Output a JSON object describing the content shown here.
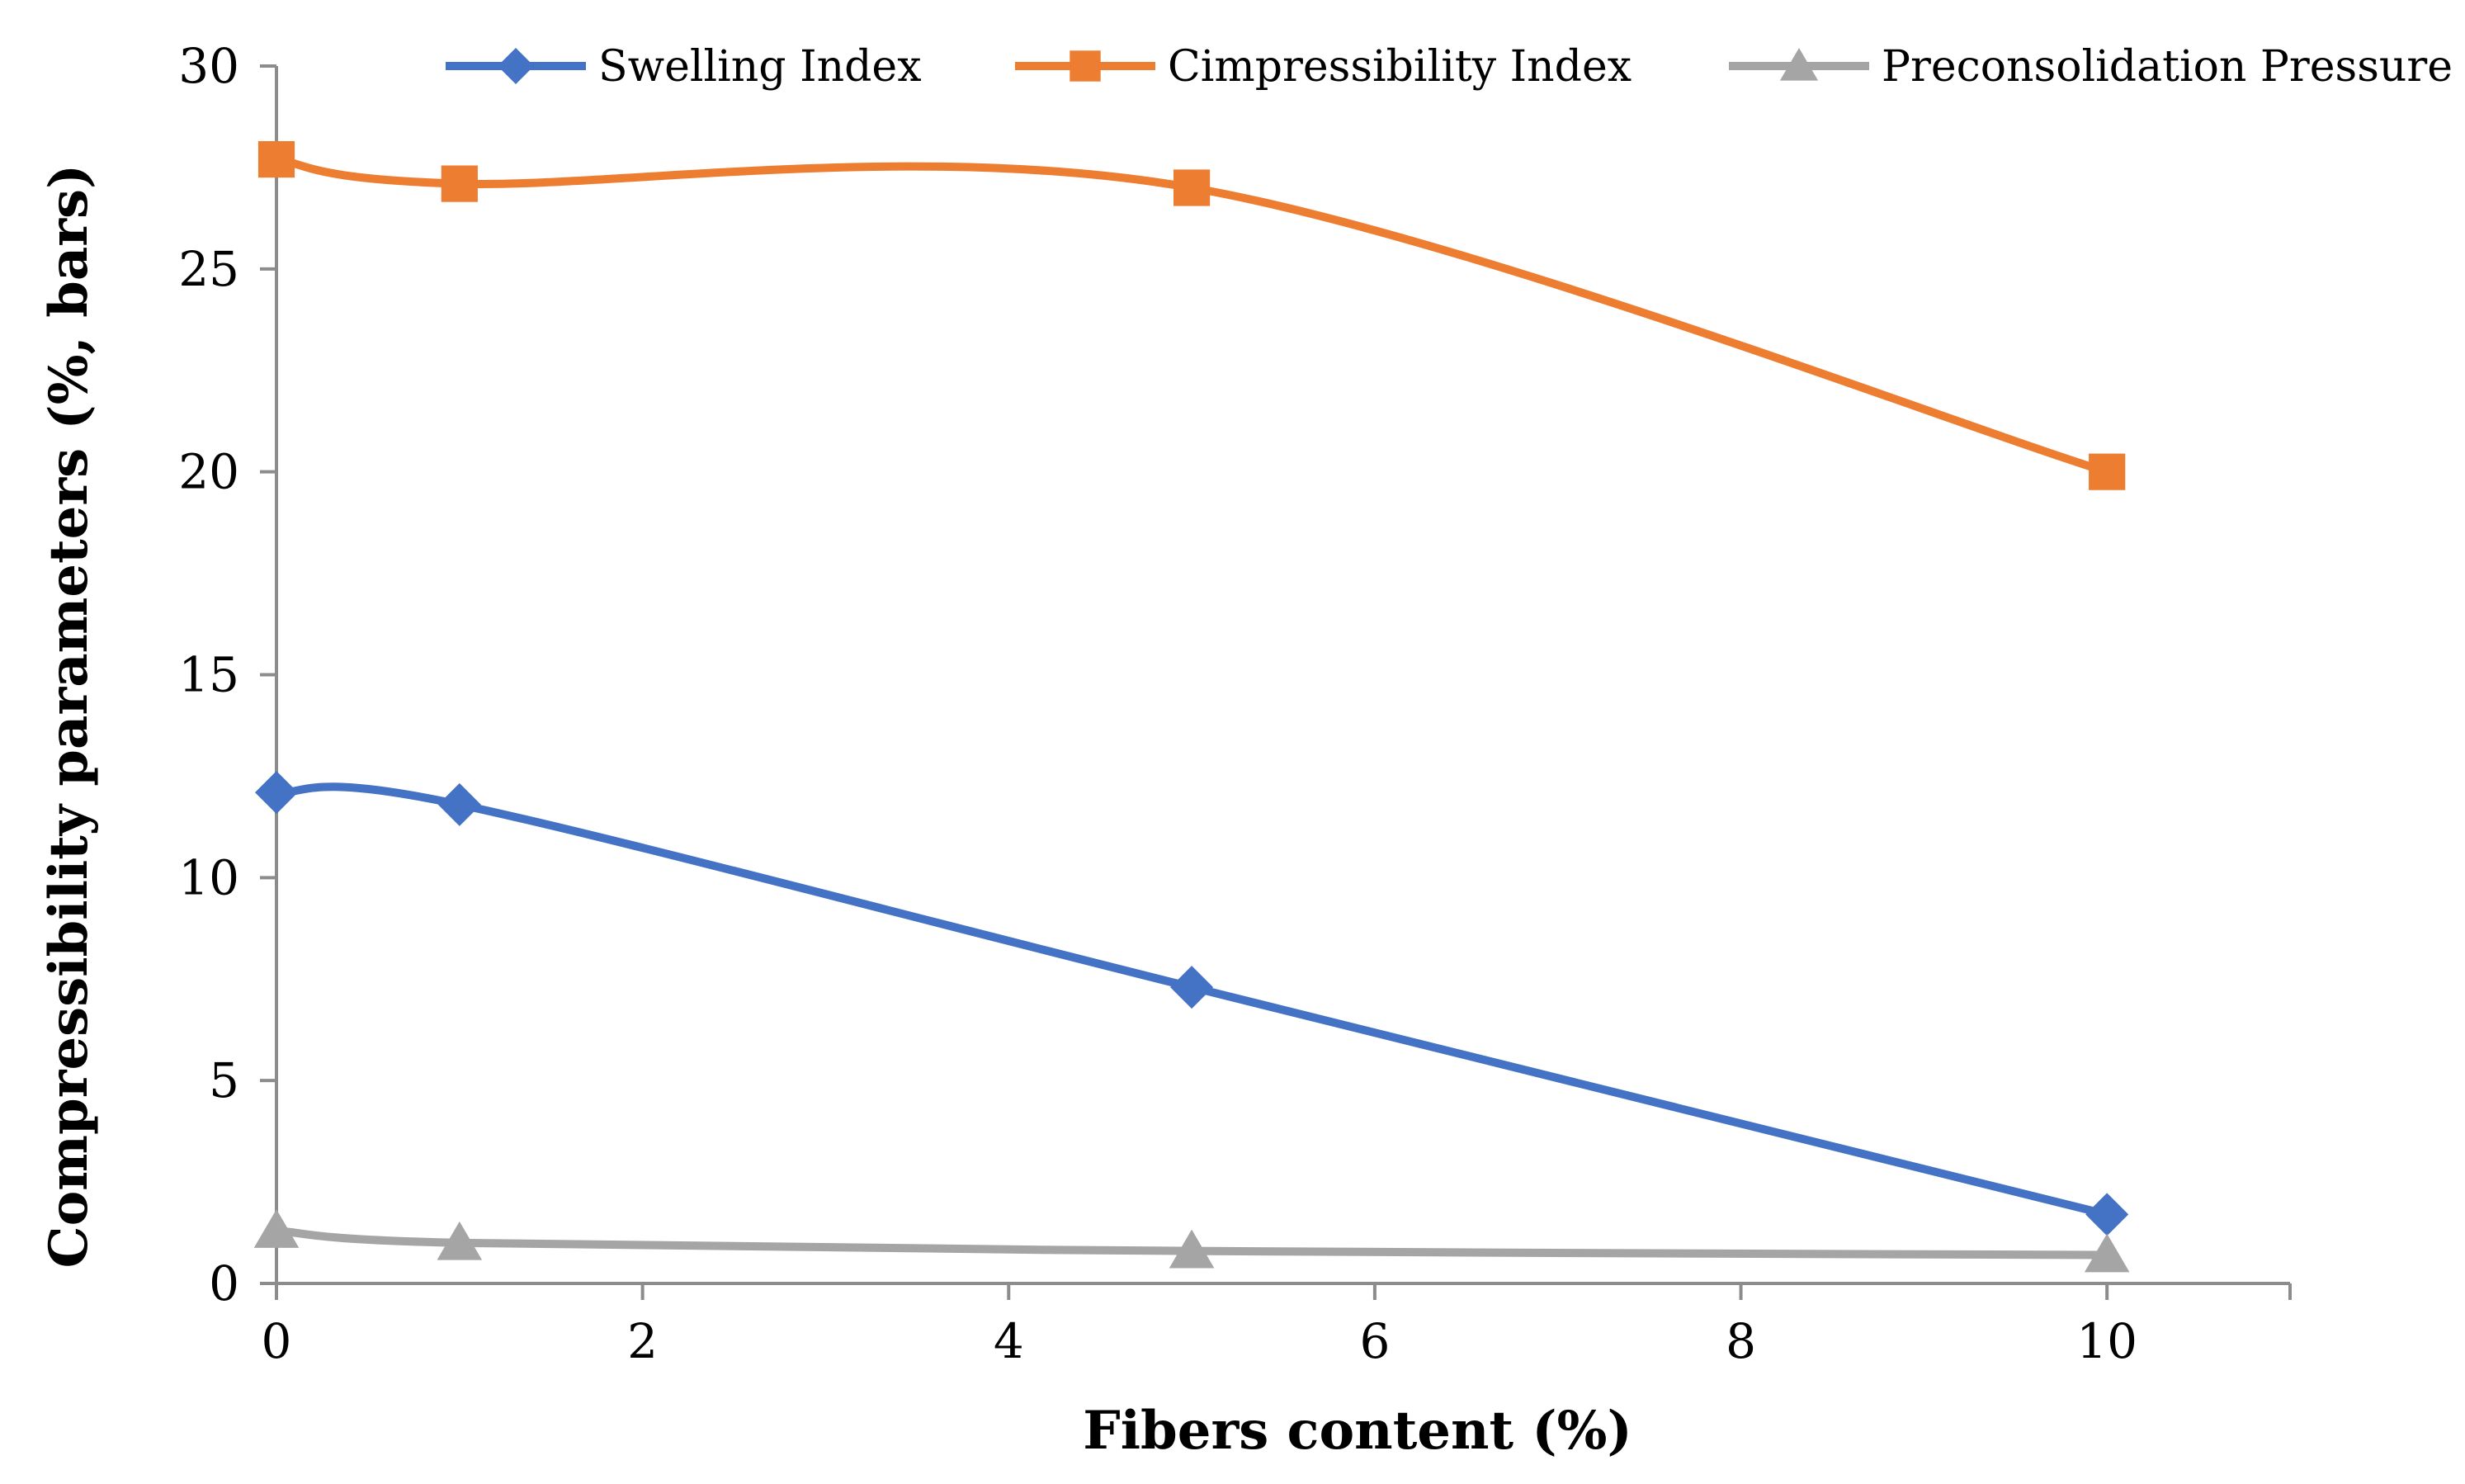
{
  "chart_data": {
    "type": "line",
    "title": "",
    "xlabel": "Fibers content (%)",
    "ylabel": "Compressibility parameters (%, bars)",
    "xlim": [
      0,
      11
    ],
    "ylim": [
      0,
      30
    ],
    "xticks": [
      0,
      2,
      4,
      6,
      8,
      10
    ],
    "yticks": [
      0,
      5,
      10,
      15,
      20,
      25,
      30
    ],
    "x": [
      0,
      1,
      5,
      10
    ],
    "legend_position": "top",
    "grid": false,
    "series": [
      {
        "name": "Swelling Index",
        "values": [
          12.1,
          11.8,
          7.3,
          1.7
        ],
        "color": "#4472C4",
        "marker": "diamond"
      },
      {
        "name": "Cimpressibility Index",
        "values": [
          27.7,
          27.1,
          27.0,
          20.0
        ],
        "color": "#ED7D31",
        "marker": "square"
      },
      {
        "name": "Preconsolidation Pressure",
        "values": [
          1.3,
          1.0,
          0.8,
          0.7
        ],
        "color": "#A5A5A5",
        "marker": "triangle"
      }
    ]
  }
}
